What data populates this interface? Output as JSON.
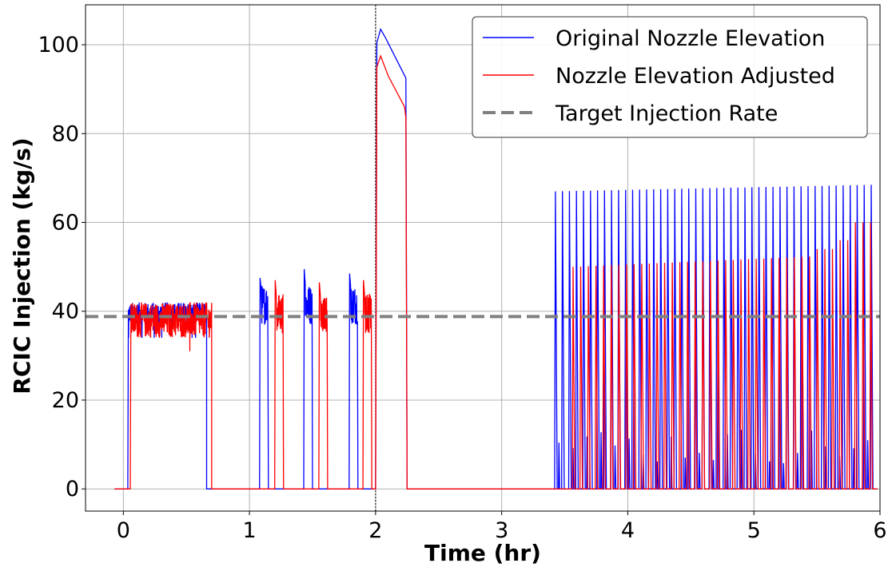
{
  "chart_data": {
    "type": "line",
    "xlabel": "Time (hr)",
    "ylabel": "RCIC Injection (kg/s)",
    "xlim": [
      -0.3,
      6.0
    ],
    "ylim": [
      -5,
      109
    ],
    "xticks": [
      0,
      1,
      2,
      3,
      4,
      5,
      6
    ],
    "yticks": [
      0,
      20,
      40,
      60,
      80,
      100
    ],
    "xtick_labels": [
      "0",
      "1",
      "2",
      "3",
      "4",
      "5",
      "6"
    ],
    "ytick_labels": [
      "0",
      "20",
      "40",
      "60",
      "80",
      "100"
    ],
    "grid": true,
    "legend_position": "top-right",
    "vertical_marker_x": 2.0,
    "series": [
      {
        "name": "Original Nozzle Elevation",
        "color": "#0000ff",
        "segments": [
          {
            "kind": "flat",
            "x": [
              -0.07,
              0.03
            ],
            "y": 0
          },
          {
            "kind": "noisy",
            "x": [
              0.04,
              0.66
            ],
            "y_range": [
              34,
              44
            ]
          },
          {
            "kind": "flat",
            "x": [
              0.67,
              1.07
            ],
            "y": 0
          },
          {
            "kind": "spike",
            "x_start": 1.08,
            "x_end": 1.15,
            "peak": 47.5,
            "base": 37
          },
          {
            "kind": "spike",
            "x_start": 1.43,
            "x_end": 1.5,
            "peak": 49.5,
            "base": 37
          },
          {
            "kind": "spike",
            "x_start": 1.79,
            "x_end": 1.86,
            "peak": 48.5,
            "base": 37
          },
          {
            "kind": "decay",
            "points": [
              [
                2.0,
                0
              ],
              [
                2.01,
                100.5
              ],
              [
                2.04,
                103.5
              ],
              [
                2.08,
                101.5
              ],
              [
                2.24,
                92.5
              ],
              [
                2.25,
                0
              ]
            ]
          },
          {
            "kind": "flat",
            "x": [
              2.25,
              3.4
            ],
            "y": 0
          },
          {
            "kind": "pulses",
            "x_start": 3.42,
            "x_end": 5.98,
            "count": 46,
            "peak_start": 67,
            "peak_end": 68.5,
            "sub_peak": 14
          }
        ]
      },
      {
        "name": "Nozzle Elevation Adjusted",
        "color": "#ff0000",
        "segments": [
          {
            "kind": "flat",
            "x": [
              -0.07,
              0.05
            ],
            "y": 0
          },
          {
            "kind": "noisy",
            "x": [
              0.06,
              0.7
            ],
            "y_range": [
              31,
              44
            ]
          },
          {
            "kind": "flat",
            "x": [
              0.7,
              1.2
            ],
            "y": 0
          },
          {
            "kind": "spike",
            "x_start": 1.2,
            "x_end": 1.27,
            "peak": 47,
            "base": 35
          },
          {
            "kind": "spike",
            "x_start": 1.55,
            "x_end": 1.62,
            "peak": 46.5,
            "base": 35
          },
          {
            "kind": "spike",
            "x_start": 1.9,
            "x_end": 1.97,
            "peak": 47,
            "base": 35
          },
          {
            "kind": "decay",
            "points": [
              [
                2.0,
                0
              ],
              [
                2.01,
                95
              ],
              [
                2.04,
                97.5
              ],
              [
                2.1,
                93
              ],
              [
                2.23,
                86
              ],
              [
                2.24,
                83.5
              ],
              [
                2.25,
                0
              ]
            ]
          },
          {
            "kind": "flat",
            "x": [
              2.25,
              3.55
            ],
            "y": 0
          },
          {
            "kind": "pulses",
            "x_start": 3.56,
            "x_end": 5.98,
            "count": 40,
            "peak_start": 50,
            "peak_end": 53,
            "peak_late": [
              [
                5.5,
                54
              ],
              [
                5.65,
                56
              ],
              [
                5.8,
                60
              ],
              [
                5.95,
                64.5
              ]
            ]
          }
        ]
      },
      {
        "name": "Target Injection Rate",
        "color": "#808080",
        "dashed": true,
        "y": 38.8
      }
    ]
  }
}
